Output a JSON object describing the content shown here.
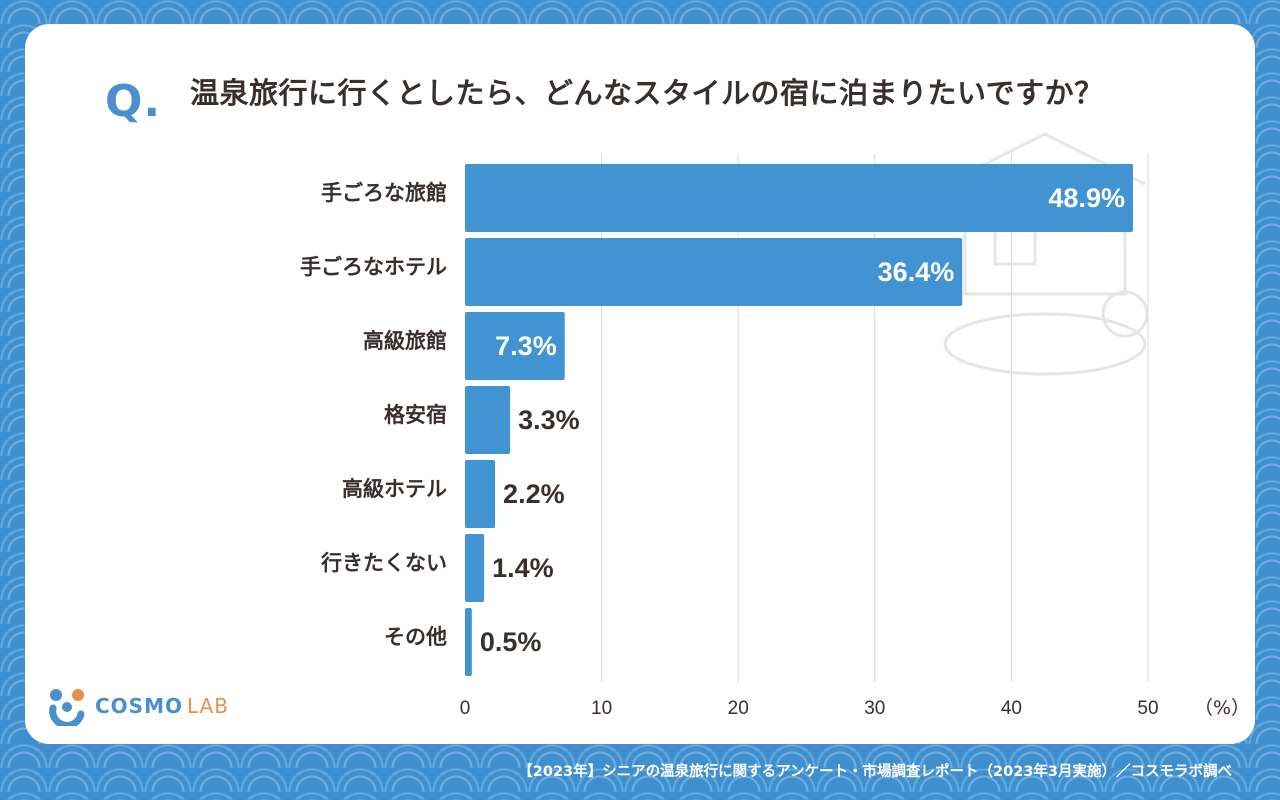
{
  "header": {
    "q_mark": "Q.",
    "question": "温泉旅行に行くとしたら、どんなスタイルの宿に泊まりたいですか？"
  },
  "logo": {
    "name_main": "COSMO",
    "name_sub": "LAB"
  },
  "footer": {
    "source": "【2023年】シニアの温泉旅行に関するアンケート・市場調査レポート（2023年3月実施）／コスモラボ調べ"
  },
  "colors": {
    "bar": "#4193d1",
    "accent": "#4a90cf",
    "text": "#3a2f2d",
    "background": "#3f8fcf"
  },
  "chart_data": {
    "type": "bar",
    "orientation": "horizontal",
    "categories": [
      "手ごろな旅館",
      "手ごろなホテル",
      "高級旅館",
      "格安宿",
      "高級ホテル",
      "行きたくない",
      "その他"
    ],
    "values": [
      48.9,
      36.4,
      7.3,
      3.3,
      2.2,
      1.4,
      0.5
    ],
    "value_labels": [
      "48.9%",
      "36.4%",
      "7.3%",
      "3.3%",
      "2.2%",
      "1.4%",
      "0.5%"
    ],
    "unit_label": "（%）",
    "xlim": [
      0,
      50
    ],
    "x_ticks": [
      0,
      10,
      20,
      30,
      40,
      50
    ],
    "grid": true,
    "legend": "none"
  }
}
